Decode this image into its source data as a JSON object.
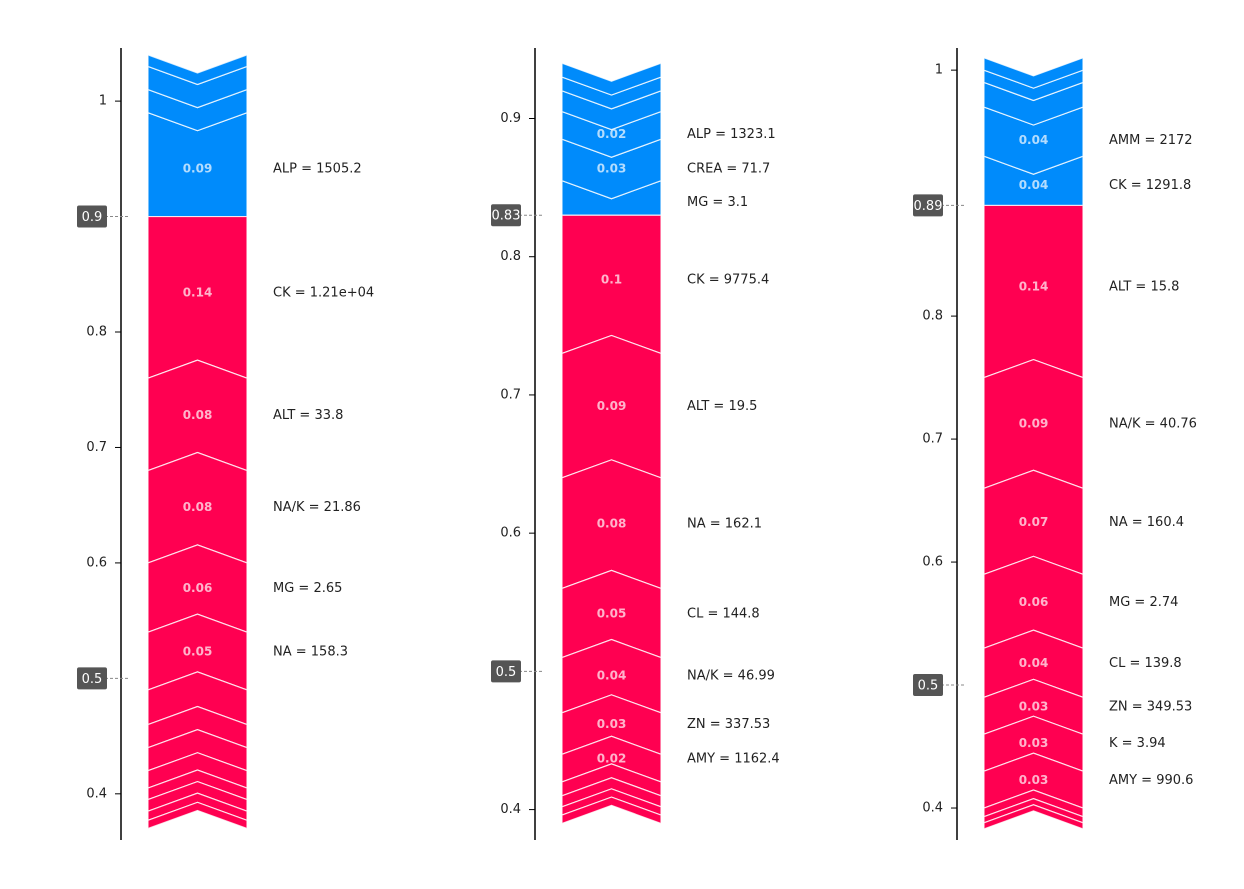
{
  "chart_data": [
    {
      "type": "force",
      "ylim": [
        0.36,
        1.046
      ],
      "yticks": [
        1,
        0.8,
        0.7,
        0.6,
        0.4
      ],
      "output": 0.9,
      "base": 0.5,
      "positive": {
        "color": "#008bfb",
        "values": [
          0.09,
          0.02,
          0.02,
          0.01
        ],
        "value_labels": [
          "0.09",
          null,
          null,
          null
        ],
        "features": [
          "ALP = 1505.2",
          null,
          null,
          null
        ]
      },
      "negative": {
        "color": "#ff0051",
        "values": [
          0.14,
          0.08,
          0.08,
          0.06,
          0.05,
          0.03,
          0.02,
          0.02,
          0.015,
          0.01,
          0.01,
          0.008,
          0.007
        ],
        "value_labels": [
          "0.14",
          "0.08",
          "0.08",
          "0.06",
          "0.05",
          null,
          null,
          null,
          null,
          null,
          null,
          null,
          null
        ],
        "features": [
          "CK = 1.21e+04",
          "ALT = 33.8",
          "NA/K = 21.86",
          "MG = 2.65",
          "NA = 158.3",
          null,
          null,
          null,
          null,
          null,
          null,
          null,
          null
        ]
      }
    },
    {
      "type": "force",
      "ylim": [
        0.378,
        0.951
      ],
      "yticks": [
        0.9,
        0.8,
        0.7,
        0.6,
        0.4
      ],
      "output": 0.83,
      "base": 0.5,
      "positive": {
        "color": "#008bfb",
        "values": [
          0.025,
          0.03,
          0.02,
          0.015,
          0.01,
          0.01
        ],
        "value_labels": [
          null,
          "0.03",
          "0.02",
          null,
          null,
          null
        ],
        "features": [
          "MG = 3.1",
          "CREA = 71.7",
          "ALP = 1323.1",
          null,
          null,
          null
        ]
      },
      "negative": {
        "color": "#ff0051",
        "values": [
          0.1,
          0.09,
          0.08,
          0.05,
          0.04,
          0.03,
          0.02,
          0.01,
          0.008,
          0.006,
          0.006
        ],
        "value_labels": [
          "0.1",
          "0.09",
          "0.08",
          "0.05",
          "0.04",
          "0.03",
          "0.02",
          null,
          null,
          null,
          null
        ],
        "features": [
          "CK = 9775.4",
          "ALT = 19.5",
          "NA = 162.1",
          "CL = 144.8",
          "NA/K = 46.99",
          "ZN = 337.53",
          "AMY = 1162.4",
          null,
          null,
          null,
          null
        ]
      }
    },
    {
      "type": "force",
      "ylim": [
        0.374,
        1.018
      ],
      "yticks": [
        1,
        0.8,
        0.7,
        0.6,
        0.4
      ],
      "output": 0.89,
      "base": 0.5,
      "positive": {
        "color": "#008bfb",
        "values": [
          0.04,
          0.04,
          0.02,
          0.01,
          0.01
        ],
        "value_labels": [
          "0.04",
          "0.04",
          null,
          null,
          null
        ],
        "features": [
          "CK = 1291.8",
          "AMM = 2172",
          null,
          null,
          null
        ]
      },
      "negative": {
        "color": "#ff0051",
        "values": [
          0.14,
          0.09,
          0.07,
          0.06,
          0.04,
          0.03,
          0.03,
          0.03,
          0.007,
          0.005,
          0.005
        ],
        "value_labels": [
          "0.14",
          "0.09",
          "0.07",
          "0.06",
          "0.04",
          "0.03",
          "0.03",
          "0.03",
          null,
          null,
          null
        ],
        "features": [
          "ALT = 15.8",
          "NA/K = 40.76",
          "NA = 160.4",
          "MG = 2.74",
          "CL = 139.8",
          "ZN = 349.53",
          "K = 3.94",
          "AMY = 990.6",
          null,
          null,
          null
        ]
      }
    }
  ]
}
